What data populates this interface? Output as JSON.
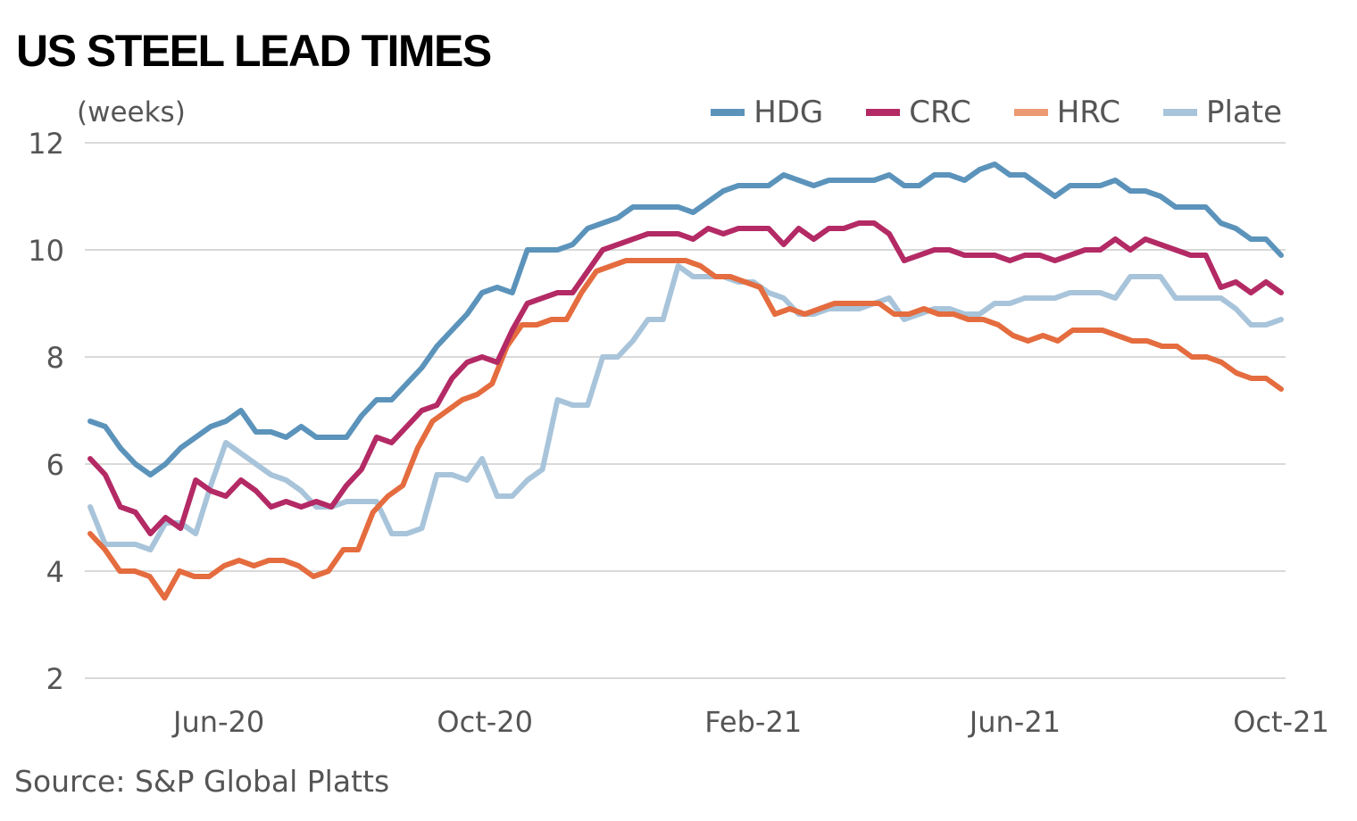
{
  "chart_data": {
    "type": "line",
    "title": "US STEEL LEAD TIMES",
    "ylabel": "(weeks)",
    "source": "Source: S&P Global Platts",
    "ylim": [
      2,
      12
    ],
    "yticks": [
      2,
      4,
      6,
      8,
      10,
      12
    ],
    "x_start": "2020-04-03",
    "x_end": "2021-10-01",
    "xticks": [
      {
        "label": "Jun-20",
        "date": "2020-06-01"
      },
      {
        "label": "Oct-20",
        "date": "2020-10-01"
      },
      {
        "label": "Feb-21",
        "date": "2021-02-01"
      },
      {
        "label": "Jun-21",
        "date": "2021-06-01"
      },
      {
        "label": "Oct-21",
        "date": "2021-10-01"
      }
    ],
    "grid": true,
    "legend_position": "top-right",
    "series": [
      {
        "name": "HDG",
        "color": "#5b93bb",
        "values": [
          6.8,
          6.7,
          6.3,
          6.0,
          5.8,
          6.0,
          6.3,
          6.5,
          6.7,
          6.8,
          7.0,
          6.6,
          6.6,
          6.5,
          6.7,
          6.5,
          6.5,
          6.5,
          6.9,
          7.2,
          7.2,
          7.5,
          7.8,
          8.2,
          8.5,
          8.8,
          9.2,
          9.3,
          9.2,
          10.0,
          10.0,
          10.0,
          10.1,
          10.4,
          10.5,
          10.6,
          10.8,
          10.8,
          10.8,
          10.8,
          10.7,
          10.9,
          11.1,
          11.2,
          11.2,
          11.2,
          11.4,
          11.3,
          11.2,
          11.3,
          11.3,
          11.3,
          11.3,
          11.4,
          11.2,
          11.2,
          11.4,
          11.4,
          11.3,
          11.5,
          11.6,
          11.4,
          11.4,
          11.2,
          11.0,
          11.2,
          11.2,
          11.2,
          11.3,
          11.1,
          11.1,
          11.0,
          10.8,
          10.8,
          10.8,
          10.5,
          10.4,
          10.2,
          10.2,
          9.9
        ]
      },
      {
        "name": "CRC",
        "color": "#b32a65",
        "values": [
          6.1,
          5.8,
          5.2,
          5.1,
          4.7,
          5.0,
          4.8,
          5.7,
          5.5,
          5.4,
          5.7,
          5.5,
          5.2,
          5.3,
          5.2,
          5.3,
          5.2,
          5.6,
          5.9,
          6.5,
          6.4,
          6.7,
          7.0,
          7.1,
          7.6,
          7.9,
          8.0,
          7.9,
          8.5,
          9.0,
          9.1,
          9.2,
          9.2,
          9.6,
          10.0,
          10.1,
          10.2,
          10.3,
          10.3,
          10.3,
          10.2,
          10.4,
          10.3,
          10.4,
          10.4,
          10.4,
          10.1,
          10.4,
          10.2,
          10.4,
          10.4,
          10.5,
          10.5,
          10.3,
          9.8,
          9.9,
          10.0,
          10.0,
          9.9,
          9.9,
          9.9,
          9.8,
          9.9,
          9.9,
          9.8,
          9.9,
          10.0,
          10.0,
          10.2,
          10.0,
          10.2,
          10.1,
          10.0,
          9.9,
          9.9,
          9.3,
          9.4,
          9.2,
          9.4,
          9.2
        ]
      },
      {
        "name": "HRC",
        "color": "#e46c3f",
        "legend_color": "#ec9a72",
        "values": [
          4.7,
          4.4,
          4.0,
          4.0,
          3.9,
          3.5,
          4.0,
          3.9,
          3.9,
          4.1,
          4.2,
          4.1,
          4.2,
          4.2,
          4.1,
          3.9,
          4.0,
          4.4,
          4.4,
          5.1,
          5.4,
          5.6,
          6.3,
          6.8,
          7.0,
          7.2,
          7.3,
          7.5,
          8.2,
          8.6,
          8.6,
          8.7,
          8.7,
          9.2,
          9.6,
          9.7,
          9.8,
          9.8,
          9.8,
          9.8,
          9.8,
          9.7,
          9.5,
          9.5,
          9.4,
          9.3,
          8.8,
          8.9,
          8.8,
          8.9,
          9.0,
          9.0,
          9.0,
          9.0,
          8.8,
          8.8,
          8.9,
          8.8,
          8.8,
          8.7,
          8.7,
          8.6,
          8.4,
          8.3,
          8.4,
          8.3,
          8.5,
          8.5,
          8.5,
          8.4,
          8.3,
          8.3,
          8.2,
          8.2,
          8.0,
          8.0,
          7.9,
          7.7,
          7.6,
          7.6,
          7.4
        ]
      },
      {
        "name": "Plate",
        "color": "#a8c4da",
        "values": [
          5.2,
          4.5,
          4.5,
          4.5,
          4.4,
          4.9,
          4.9,
          4.7,
          5.6,
          6.4,
          6.2,
          6.0,
          5.8,
          5.7,
          5.5,
          5.2,
          5.2,
          5.3,
          5.3,
          5.3,
          4.7,
          4.7,
          4.8,
          5.8,
          5.8,
          5.7,
          6.1,
          5.4,
          5.4,
          5.7,
          5.9,
          7.2,
          7.1,
          7.1,
          8.0,
          8.0,
          8.3,
          8.7,
          8.7,
          9.7,
          9.5,
          9.5,
          9.5,
          9.4,
          9.4,
          9.2,
          9.1,
          8.8,
          8.8,
          8.9,
          8.9,
          8.9,
          9.0,
          9.1,
          8.7,
          8.8,
          8.9,
          8.9,
          8.8,
          8.8,
          9.0,
          9.0,
          9.1,
          9.1,
          9.1,
          9.2,
          9.2,
          9.2,
          9.1,
          9.5,
          9.5,
          9.5,
          9.1,
          9.1,
          9.1,
          9.1,
          8.9,
          8.6,
          8.6,
          8.7
        ]
      }
    ]
  }
}
